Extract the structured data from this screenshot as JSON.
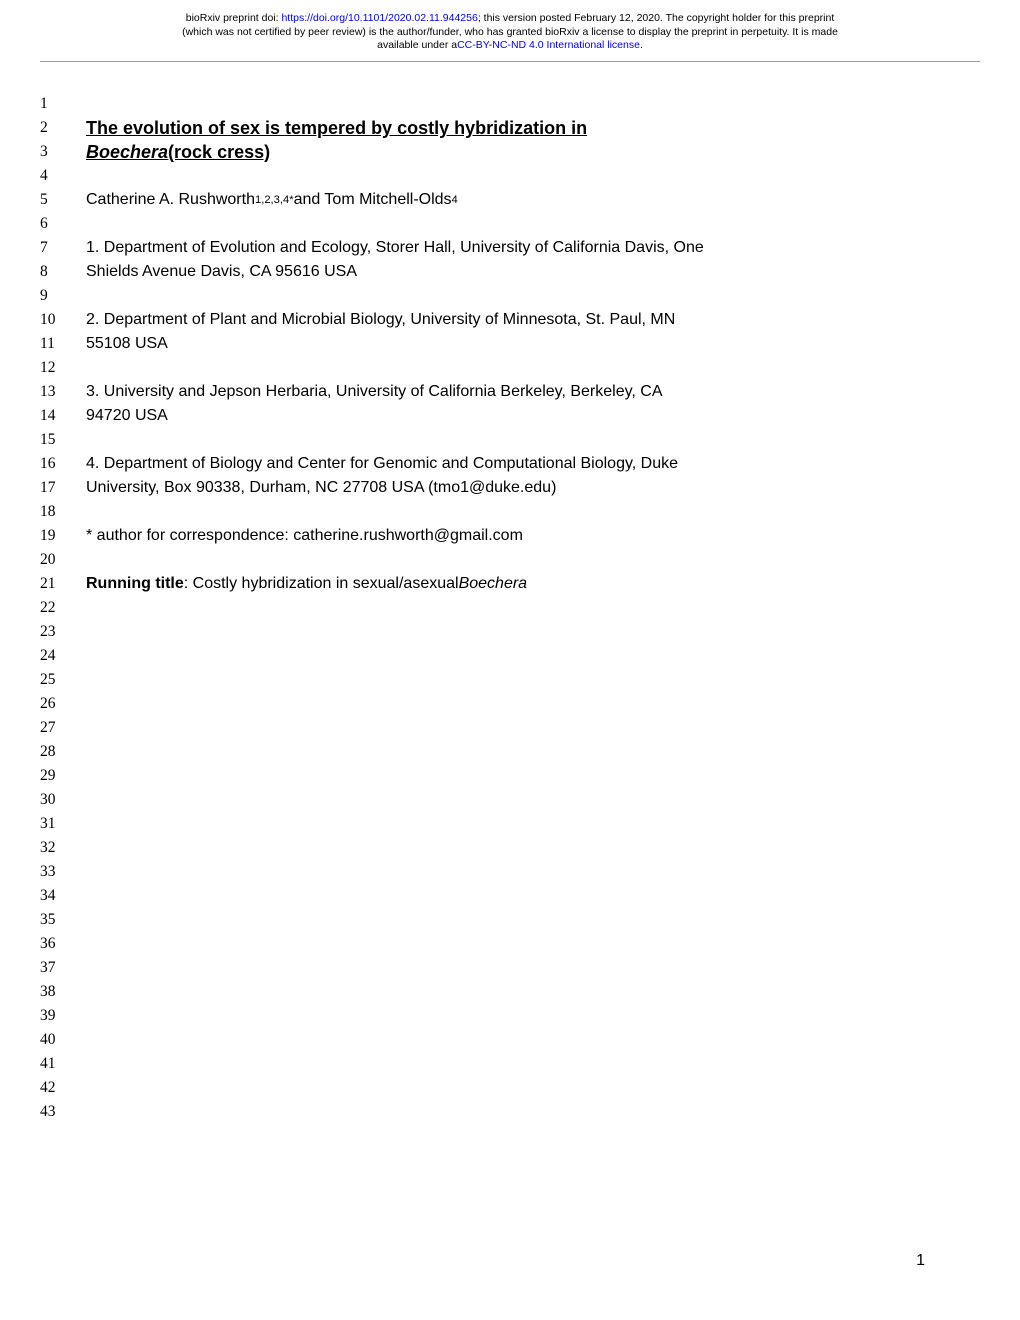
{
  "preprint": {
    "line1_pre": "bioRxiv preprint doi: ",
    "doi_url": "https://doi.org/10.1101/2020.02.11.944256",
    "line1_post": "; this version posted February 12, 2020. The copyright holder for this preprint",
    "line2": "(which was not certified by peer review) is the author/funder, who has granted bioRxiv a license to display the preprint in perpetuity. It is made",
    "line3_pre": "available under a",
    "license_text": "CC-BY-NC-ND 4.0 International license",
    "line3_post": "."
  },
  "lines": {
    "l1": "1",
    "l2": "2",
    "l3": "3",
    "l4": "4",
    "l5": "5",
    "l6": "6",
    "l7": "7",
    "l8": "8",
    "l9": "9",
    "l10": "10",
    "l11": "11",
    "l12": "12",
    "l13": "13",
    "l14": "14",
    "l15": "15",
    "l16": "16",
    "l17": "17",
    "l18": "18",
    "l19": "19",
    "l20": "20",
    "l21": "21",
    "l22": "22",
    "l23": "23",
    "l24": "24",
    "l25": "25",
    "l26": "26",
    "l27": "27",
    "l28": "28",
    "l29": "29",
    "l30": "30",
    "l31": "31",
    "l32": "32",
    "l33": "33",
    "l34": "34",
    "l35": "35",
    "l36": "36",
    "l37": "37",
    "l38": "38",
    "l39": "39",
    "l40": "40",
    "l41": "41",
    "l42": "42",
    "l43": "43"
  },
  "title": {
    "row2": "The evolution of sex is tempered by costly hybridization in",
    "row3_italic": "Boechera",
    "row3_rest": " (rock cress)"
  },
  "authors": {
    "pre": "Catherine A. Rushworth",
    "sup1": "1,2,3,4*",
    "mid": " and Tom Mitchell-Olds",
    "sup2": "4"
  },
  "affil": {
    "a1_l1": "1. Department of Evolution and Ecology, Storer Hall, University of California Davis, One",
    "a1_l2": "Shields Avenue Davis, CA 95616 USA",
    "a2_l1": "2. Department of Plant and Microbial Biology, University of Minnesota, St. Paul, MN",
    "a2_l2": "55108 USA",
    "a3_l1": "3. University and Jepson Herbaria, University of California Berkeley, Berkeley, CA",
    "a3_l2": "94720 USA",
    "a4_l1": "4. Department of Biology and Center for Genomic and Computational Biology, Duke",
    "a4_l2": "University, Box 90338, Durham, NC 27708 USA (tmo1@duke.edu)"
  },
  "corr": "* author for correspondence: catherine.rushworth@gmail.com",
  "running": {
    "label": "Running title",
    "text": ": Costly hybridization in sexual/asexual ",
    "italic": "Boechera"
  },
  "page": "1"
}
